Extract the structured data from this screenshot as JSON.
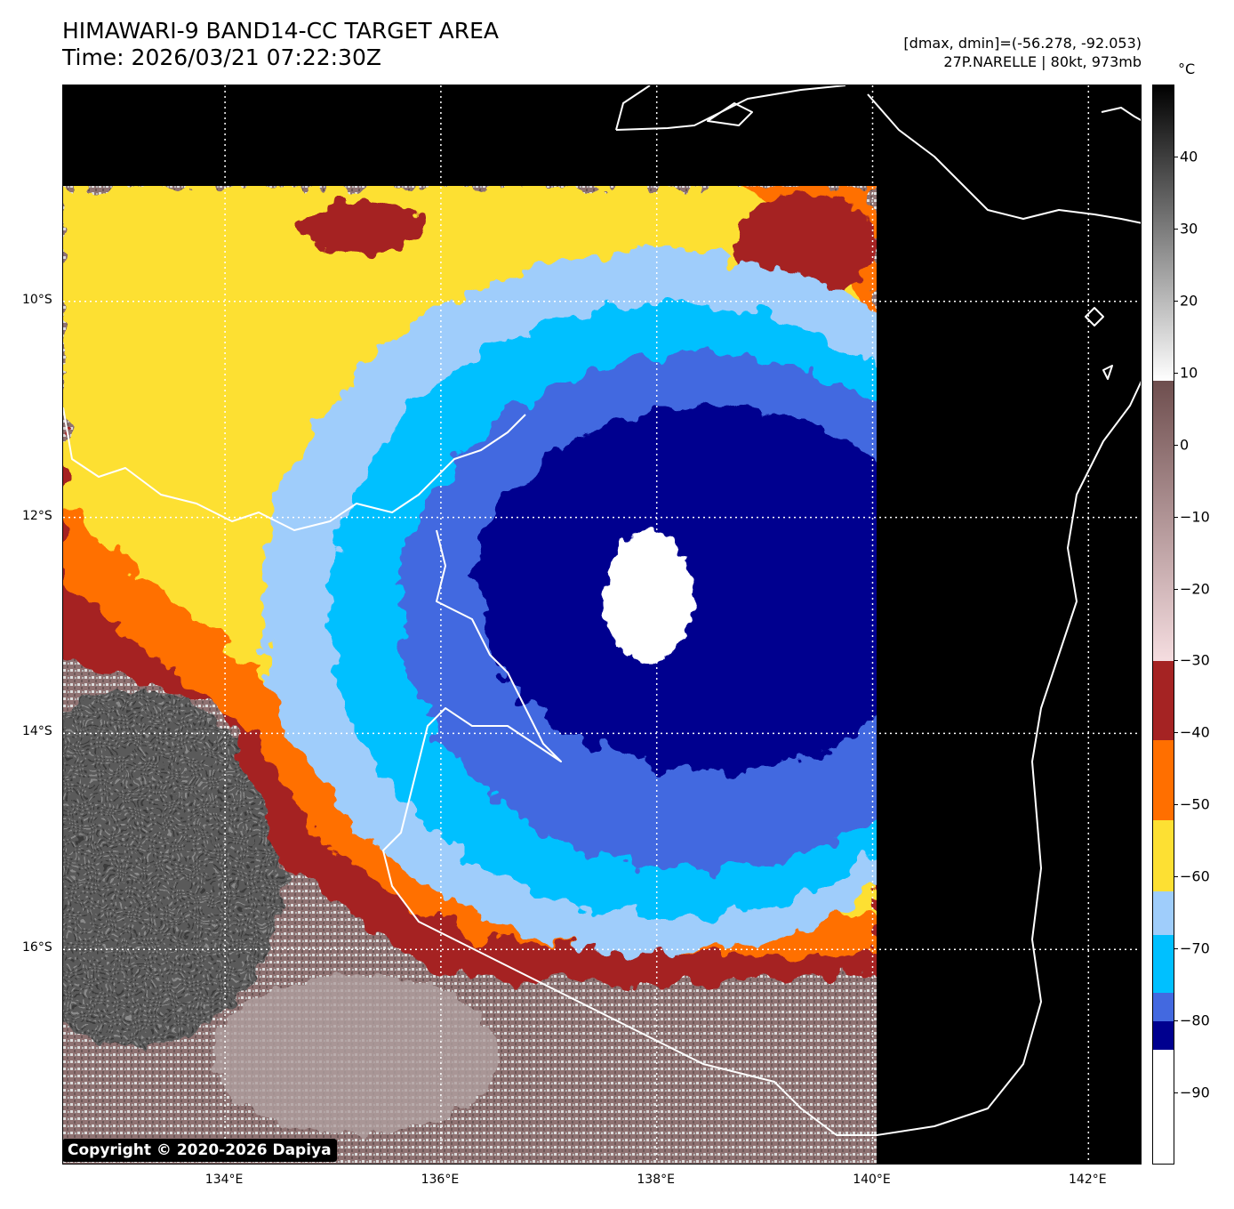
{
  "title": {
    "line1": "HIMAWARI-9 BAND14-CC TARGET AREA",
    "line2": "Time: 2026/03/21 07:22:30Z"
  },
  "info": {
    "line1": "[dmax, dmin]=(-56.278, -92.053)",
    "line2": "27P.NARELLE | 80kt, 973mb"
  },
  "colorbar": {
    "unit": "°C",
    "ticks": [
      "40",
      "30",
      "20",
      "10",
      "0",
      "−10",
      "−20",
      "−30",
      "−40",
      "−50",
      "−60",
      "−70",
      "−80",
      "−90"
    ],
    "tick_values": [
      40,
      30,
      20,
      10,
      0,
      -10,
      -20,
      -30,
      -40,
      -50,
      -60,
      -70,
      -80,
      -90
    ],
    "range": [
      -100,
      50
    ],
    "bands": [
      {
        "from": 9,
        "to": 50,
        "kind": "gradient",
        "colors": [
          "#ffffff",
          "#000000"
        ]
      },
      {
        "from": -30,
        "to": 9,
        "kind": "gradient",
        "colors": [
          "#f5dde0",
          "#6e4e4e"
        ]
      },
      {
        "from": -41,
        "to": -30,
        "color": "#a52323"
      },
      {
        "from": -52,
        "to": -41,
        "color": "#ff6f00"
      },
      {
        "from": -62,
        "to": -52,
        "color": "#fde033"
      },
      {
        "from": -68,
        "to": -62,
        "color": "#9fcdfb"
      },
      {
        "from": -76,
        "to": -68,
        "color": "#00c0ff"
      },
      {
        "from": -80,
        "to": -76,
        "color": "#4369e0"
      },
      {
        "from": -84,
        "to": -80,
        "color": "#00008f"
      },
      {
        "from": -100,
        "to": -84,
        "color": "#ffffff"
      }
    ]
  },
  "map": {
    "lat_labels": [
      "10°S",
      "12°S",
      "14°S",
      "16°S"
    ],
    "lat_values": [
      -10,
      -12,
      -14,
      -16
    ],
    "lon_labels": [
      "134°E",
      "136°E",
      "138°E",
      "140°E",
      "142°E"
    ],
    "lon_values": [
      134,
      136,
      138,
      140,
      142
    ],
    "lon_range": [
      132.5,
      142.5
    ],
    "lat_range": [
      -8.0,
      -18.0
    ],
    "storm_center": {
      "lon": 138.05,
      "lat": -12.7
    },
    "colors": {
      "background": "#000000",
      "coast": "#ffffff",
      "grid": "#ffffff",
      "cold_white": "#ffffff",
      "navy": "#00008f",
      "royal_blue": "#4369e0",
      "cyan": "#00c0ff",
      "light_blue": "#9fcdfb",
      "yellow": "#fde033",
      "orange": "#ff6f00",
      "dark_red": "#a52323",
      "pink": "#e5c7c9",
      "brown": "#8a6a6a",
      "gray": "#9a9a9a",
      "dark_gray": "#4a4a4a"
    }
  },
  "copyright": "Copyright © 2020-2026 Dapiya"
}
